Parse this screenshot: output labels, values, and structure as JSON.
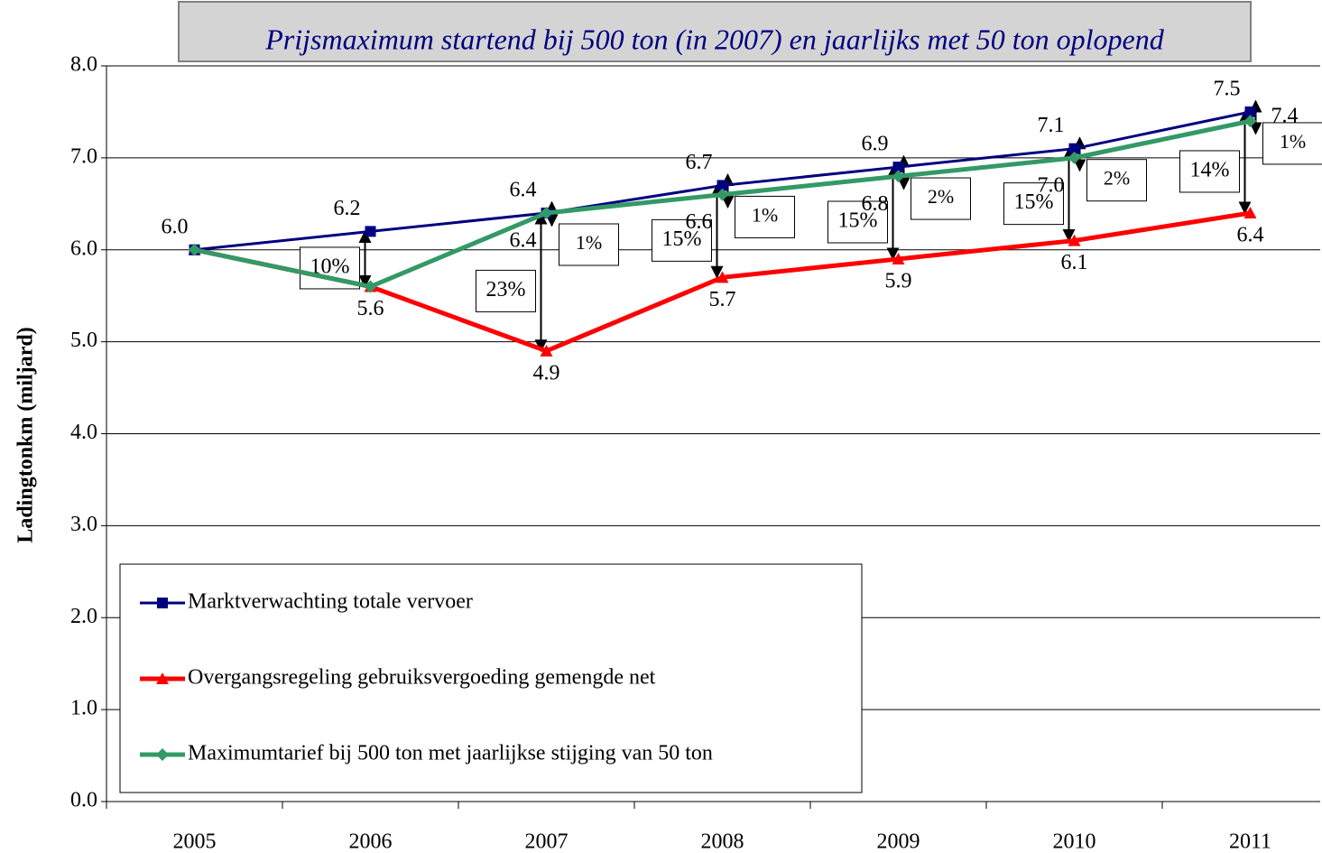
{
  "chart_data": {
    "type": "line",
    "title": "Prijsmaximum startend bij 500 ton (in 2007) en jaarlijks met 50 ton oplopend",
    "y_label": "Ladingtonkm (miljard)",
    "categories": [
      "2005",
      "2006",
      "2007",
      "2008",
      "2009",
      "2010",
      "2011"
    ],
    "ylim": [
      0,
      8
    ],
    "yticks": [
      {
        "value": 0,
        "label": "0.0"
      },
      {
        "value": 1,
        "label": "1.0"
      },
      {
        "value": 2,
        "label": "2.0"
      },
      {
        "value": 3,
        "label": "3.0"
      },
      {
        "value": 4,
        "label": "4.0"
      },
      {
        "value": 5,
        "label": "5.0"
      },
      {
        "value": 6,
        "label": "6.0"
      },
      {
        "value": 7,
        "label": "7.0"
      },
      {
        "value": 8,
        "label": "8.0"
      }
    ],
    "grid": true,
    "series": [
      {
        "name": "Marktverwachting totale vervoer",
        "color": "#000080",
        "marker": "square",
        "values": [
          6.0,
          6.2,
          6.4,
          6.7,
          6.9,
          7.1,
          7.5
        ],
        "value_labels": [
          "6.0",
          "6.2",
          "6.4",
          "6.7",
          "6.9",
          "7.1",
          "7.5"
        ]
      },
      {
        "name": "Overgangsregeling gebruiksvergoeding gemengde net",
        "color": "#ff0000",
        "marker": "triangle",
        "values": [
          6.0,
          5.6,
          4.9,
          5.7,
          5.9,
          6.1,
          6.4
        ],
        "value_labels": [
          null,
          "5.6",
          "4.9",
          "5.7",
          "5.9",
          "6.1",
          "6.4"
        ]
      },
      {
        "name": "Maximumtarief bij 500 ton met jaarlijkse stijging van 50 ton",
        "color": "#339966",
        "marker": "diamond",
        "values": [
          6.0,
          5.6,
          6.4,
          6.6,
          6.8,
          7.0,
          7.4
        ],
        "value_labels": [
          null,
          null,
          "6.4",
          "6.6",
          "6.8",
          "7.0",
          "7.4"
        ]
      }
    ],
    "gap_labels_red": [
      null,
      "10%",
      "23%",
      "15%",
      "15%",
      "15%",
      "14%"
    ],
    "gap_labels_green": [
      null,
      null,
      "1%",
      "1%",
      "2%",
      "2%",
      "1%"
    ]
  }
}
